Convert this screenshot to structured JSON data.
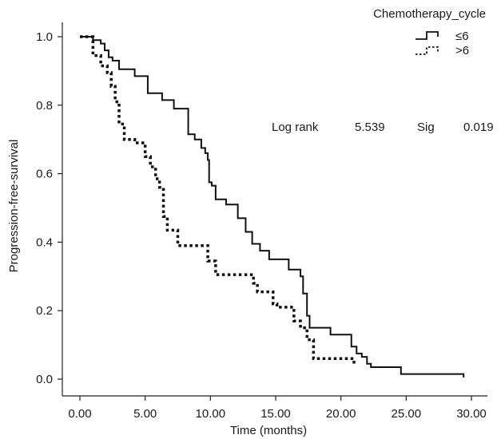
{
  "chart_data": {
    "type": "line",
    "step": true,
    "xlabel": "Time (months)",
    "ylabel": "Progression-free-survival",
    "xlim": [
      0,
      30
    ],
    "ylim": [
      0,
      1
    ],
    "xticks": [
      0,
      5,
      10,
      15,
      20,
      25,
      30
    ],
    "xtick_labels": [
      "0.00",
      "5.00",
      "10.00",
      "15.00",
      "20.00",
      "25.00",
      "30.00"
    ],
    "yticks": [
      0,
      0.2,
      0.4,
      0.6,
      0.8,
      1.0
    ],
    "ytick_labels": [
      "0.0",
      "0.2",
      "0.4",
      "0.6",
      "0.8",
      "1.0"
    ],
    "grid": false,
    "legend": {
      "title": "Chemotherapy_cycle",
      "placement": "top-right",
      "items": [
        {
          "label": "≤6",
          "style": "solid"
        },
        {
          "label": ">6",
          "style": "dotted"
        }
      ]
    },
    "stats": {
      "test_label": "Log rank",
      "test_value": "5.539",
      "sig_label": "Sig",
      "sig_value": "0.019"
    },
    "series": [
      {
        "name": "≤6",
        "style": "solid",
        "color": "#111111",
        "x": [
          0.0,
          1.0,
          1.6,
          1.9,
          2.2,
          2.5,
          3.0,
          4.2,
          5.2,
          6.3,
          7.2,
          8.3,
          8.8,
          9.3,
          9.6,
          9.8,
          9.9,
          10.1,
          10.4,
          11.2,
          12.1,
          12.7,
          13.2,
          13.8,
          14.5,
          16.0,
          16.9,
          17.1,
          17.4,
          17.6,
          19.2,
          20.8,
          21.2,
          21.6,
          22.0,
          22.3,
          24.6,
          29.4
        ],
        "y": [
          1.0,
          0.99,
          0.98,
          0.96,
          0.94,
          0.93,
          0.905,
          0.885,
          0.835,
          0.815,
          0.79,
          0.715,
          0.7,
          0.675,
          0.66,
          0.64,
          0.575,
          0.565,
          0.525,
          0.51,
          0.47,
          0.43,
          0.395,
          0.375,
          0.35,
          0.32,
          0.3,
          0.25,
          0.185,
          0.15,
          0.13,
          0.095,
          0.075,
          0.065,
          0.045,
          0.035,
          0.015,
          0.005
        ]
      },
      {
        "name": ">6",
        "style": "dotted",
        "color": "#111111",
        "x": [
          0.0,
          1.0,
          1.6,
          2.1,
          2.4,
          2.7,
          3.0,
          3.4,
          4.2,
          5.0,
          5.4,
          5.8,
          6.1,
          6.4,
          6.7,
          7.5,
          9.8,
          10.4,
          13.3,
          13.6,
          14.8,
          15.1,
          16.4,
          16.9,
          17.4,
          17.9,
          21.0
        ],
        "y": [
          1.0,
          0.945,
          0.915,
          0.895,
          0.855,
          0.81,
          0.745,
          0.7,
          0.69,
          0.65,
          0.62,
          0.585,
          0.56,
          0.475,
          0.435,
          0.39,
          0.345,
          0.305,
          0.28,
          0.255,
          0.22,
          0.21,
          0.17,
          0.15,
          0.115,
          0.06,
          0.04
        ]
      }
    ]
  }
}
